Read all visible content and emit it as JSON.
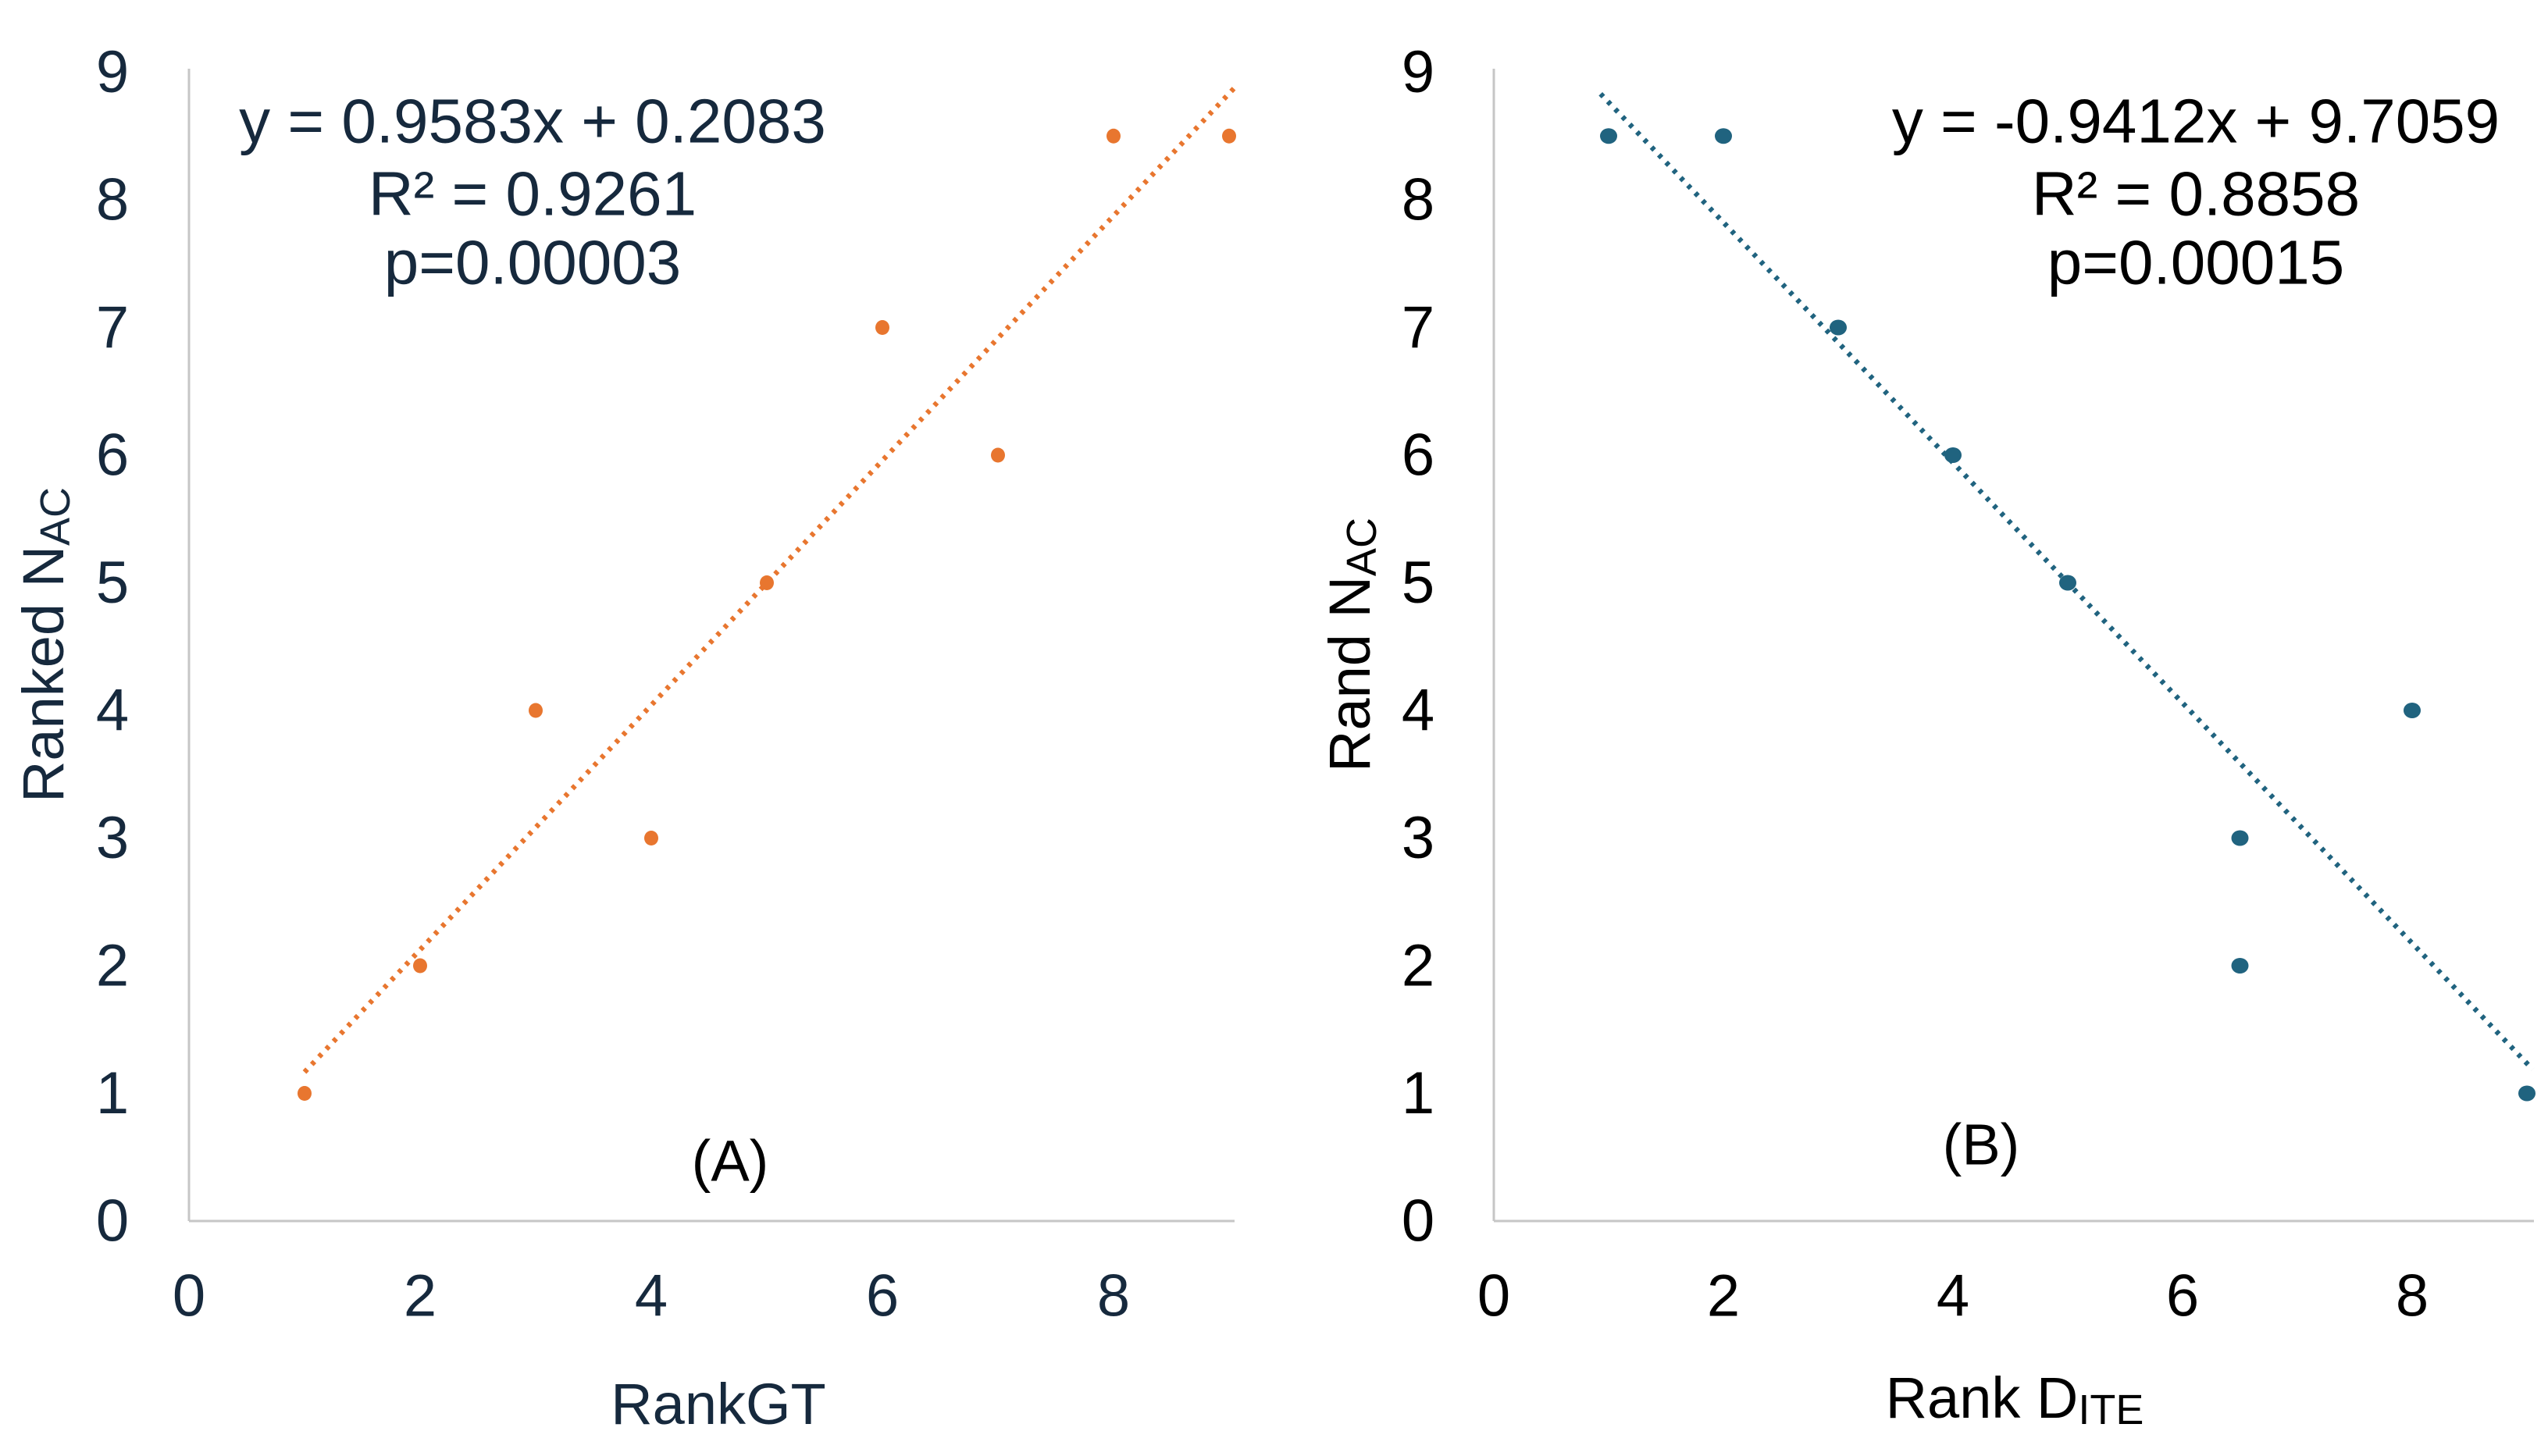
{
  "background": "#ffffff",
  "axis_color": "#c6c6c6",
  "chart_data": [
    {
      "type": "scatter",
      "panel_label": "(A)",
      "annotation_lines": [
        "y = 0.9583x + 0.2083",
        "R² = 0.9261",
        "p=0.00003"
      ],
      "xlabel": "RankGT",
      "xlabel_subscript": "",
      "ylabel": "Ranked N",
      "ylabel_subscript": "AC",
      "x_ticks": [
        0,
        2,
        4,
        6,
        8
      ],
      "y_ticks": [
        0,
        1,
        2,
        3,
        4,
        5,
        6,
        7,
        8,
        9
      ],
      "xlim": [
        0,
        9.05
      ],
      "ylim": [
        0,
        9.03
      ],
      "grid": false,
      "legend": false,
      "points": [
        [
          1,
          1
        ],
        [
          2,
          2
        ],
        [
          3,
          4
        ],
        [
          4,
          3
        ],
        [
          5,
          5
        ],
        [
          6,
          7
        ],
        [
          7,
          6
        ],
        [
          8,
          8.5
        ],
        [
          9,
          8.5
        ]
      ],
      "trendline": {
        "slope": 0.9583,
        "intercept": 0.2083,
        "x_start": 1.0,
        "x_end": 9.05,
        "style": "dotted"
      },
      "point_color": "#e8762f",
      "trend_color": "#e8762f",
      "text_color": "#16293d"
    },
    {
      "type": "scatter",
      "panel_label": "(B)",
      "annotation_lines": [
        "y = -0.9412x + 9.7059",
        "R² = 0.8858",
        "p=0.00015"
      ],
      "xlabel": "Rank D",
      "xlabel_subscript": "ITE",
      "ylabel": "Rand N",
      "ylabel_subscript": "AC",
      "x_ticks": [
        0,
        2,
        4,
        6,
        8
      ],
      "y_ticks": [
        0,
        1,
        2,
        3,
        4,
        5,
        6,
        7,
        8,
        9
      ],
      "xlim": [
        0,
        9.05
      ],
      "ylim": [
        0,
        9.03
      ],
      "grid": false,
      "legend": false,
      "points": [
        [
          1,
          8.5
        ],
        [
          2,
          8.5
        ],
        [
          3,
          7
        ],
        [
          4,
          6
        ],
        [
          5,
          5
        ],
        [
          6.5,
          3
        ],
        [
          6.5,
          2
        ],
        [
          8,
          4
        ],
        [
          9,
          1
        ]
      ],
      "trendline": {
        "slope": -0.9412,
        "intercept": 9.7059,
        "x_start": 0.93,
        "x_end": 9.05,
        "style": "dotted"
      },
      "point_color": "#20637f",
      "trend_color": "#20637f",
      "text_color": "#000000"
    }
  ]
}
